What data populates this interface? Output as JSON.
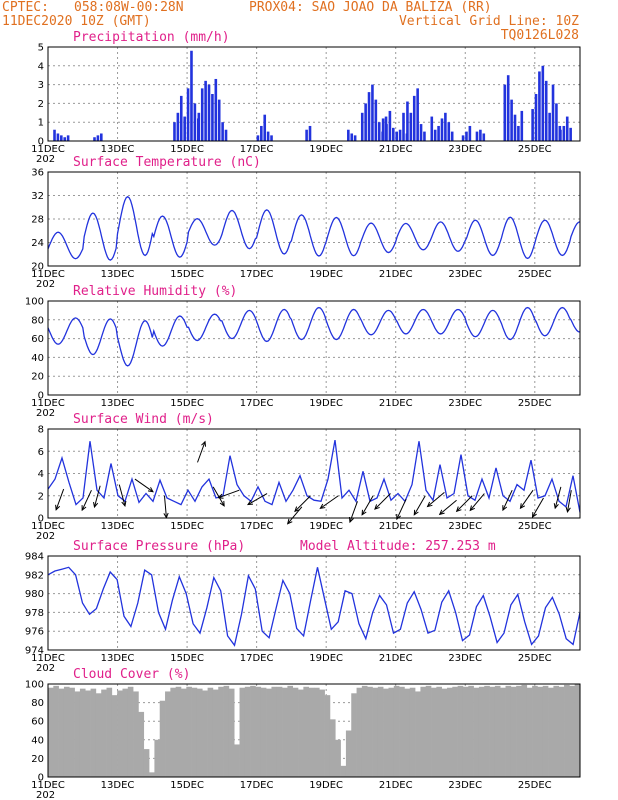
{
  "header": {
    "line1_left": "CPTEC:",
    "coords": "058:08W-00:28N",
    "station": "PROX04: SAO JOAO DA BALIZA (RR)",
    "datetime": "11DEC2020 10Z (GMT)",
    "grid_note": "Vertical Grid Line: 10Z",
    "model_code": "TQ0126L028"
  },
  "x_axis": {
    "tick_labels": [
      "11DEC",
      "13DEC",
      "15DEC",
      "17DEC",
      "19DEC",
      "21DEC",
      "23DEC",
      "25DEC"
    ],
    "cut_label": "202"
  },
  "colors": {
    "header": "#e07020",
    "title": "#e0208a",
    "series": "#2233dd",
    "cloud": "#a9a9a9",
    "wind_arrow": "#000000"
  },
  "chart_data": [
    {
      "type": "bar",
      "title": "Precipitation (mm/h)",
      "ylim": [
        0,
        5
      ],
      "yticks": [
        0,
        1,
        2,
        3,
        4,
        5
      ],
      "x_range_days": [
        0,
        15.3
      ],
      "bursts": [
        {
          "day": 0.15,
          "values": [
            0.6,
            0.4,
            0.3,
            0.2,
            0.3
          ]
        },
        {
          "day": 1.3,
          "values": [
            0.2,
            0.3,
            0.4
          ]
        },
        {
          "day": 3.6,
          "values": [
            1.0,
            1.5,
            2.4,
            1.3,
            2.8,
            4.8,
            2.0,
            1.2
          ]
        },
        {
          "day": 4.3,
          "values": [
            1.5,
            2.8,
            3.2,
            3.0,
            2.5,
            3.3,
            2.2,
            1.0,
            0.6
          ]
        },
        {
          "day": 6.0,
          "values": [
            0.3,
            0.8,
            1.4,
            0.5,
            0.3
          ]
        },
        {
          "day": 7.4,
          "values": [
            0.6,
            0.8
          ]
        },
        {
          "day": 8.6,
          "values": [
            0.6,
            0.4,
            0.3
          ]
        },
        {
          "day": 9.0,
          "values": [
            1.5,
            2.0,
            2.6,
            3.0,
            2.2,
            1.0,
            0.5,
            1.3
          ]
        },
        {
          "day": 9.6,
          "values": [
            1.2,
            0.9,
            1.6,
            0.7,
            0.5,
            0.6,
            1.5,
            0.4
          ]
        },
        {
          "day": 10.3,
          "values": [
            2.1,
            1.5,
            2.4,
            2.8,
            0.9,
            0.5
          ]
        },
        {
          "day": 11.0,
          "values": [
            1.3,
            0.6,
            0.8,
            1.2,
            1.5,
            1.0,
            0.5
          ]
        },
        {
          "day": 11.9,
          "values": [
            0.3,
            0.5,
            0.8
          ]
        },
        {
          "day": 12.3,
          "values": [
            0.5,
            0.6,
            0.4
          ]
        },
        {
          "day": 13.1,
          "values": [
            3.0,
            3.5,
            2.2,
            1.4,
            0.8,
            1.6
          ]
        },
        {
          "day": 13.9,
          "values": [
            1.7,
            2.5,
            3.7,
            4.0,
            3.2,
            1.5,
            3.0,
            2.0,
            0.8
          ]
        },
        {
          "day": 14.7,
          "values": [
            0.6,
            0.8,
            1.3,
            0.7
          ]
        }
      ]
    },
    {
      "type": "line",
      "title": "Surface Temperature (nC)",
      "ylim": [
        20,
        36
      ],
      "yticks": [
        20,
        24,
        28,
        32,
        36
      ],
      "mean": [
        23.5,
        25,
        26.8,
        25,
        25.8,
        26.2,
        25.8,
        25.2,
        25,
        24.8,
        25,
        25,
        24.8,
        24.8,
        24.8,
        25,
        25.2
      ],
      "amp": [
        4.5,
        8,
        10,
        7,
        4.5,
        6.5,
        7.5,
        7,
        6.5,
        5,
        4.5,
        5,
        6,
        7,
        6,
        5,
        4
      ],
      "peak_hour": 17
    },
    {
      "type": "line",
      "title": "Relative Humidity (%)",
      "ylim": [
        0,
        100
      ],
      "yticks": [
        0,
        20,
        40,
        60,
        80,
        100
      ],
      "mean": [
        68,
        62,
        55,
        68,
        72,
        75,
        74,
        76,
        75,
        77,
        78,
        78,
        76,
        76,
        78,
        80,
        82
      ],
      "amp": [
        28,
        38,
        48,
        32,
        28,
        30,
        34,
        34,
        32,
        26,
        26,
        26,
        28,
        34,
        30,
        26,
        22
      ],
      "trough_hour": 17
    },
    {
      "type": "line",
      "title": "Surface Wind (m/s)",
      "ylim": [
        0,
        8
      ],
      "yticks": [
        0,
        2,
        4,
        6,
        8
      ],
      "values": [
        2.6,
        3.5,
        5.4,
        3.2,
        1.2,
        1.8,
        6.9,
        2.5,
        1.8,
        4.9,
        2.0,
        1.5,
        3.5,
        1.4,
        2.2,
        1.5,
        3.4,
        1.8,
        1.5,
        1.2,
        2.5,
        1.5,
        2.8,
        3.5,
        1.8,
        2.0,
        5.6,
        3.0,
        2.0,
        1.5,
        2.8,
        1.5,
        1.2,
        3.2,
        1.5,
        2.5,
        3.8,
        2.0,
        1.6,
        1.5,
        3.5,
        7.0,
        1.8,
        2.5,
        1.5,
        4.2,
        1.5,
        1.8,
        3.5,
        1.6,
        2.2,
        1.5,
        3.0,
        6.9,
        2.5,
        1.6,
        4.8,
        1.8,
        2.2,
        5.7,
        2.0,
        1.6,
        3.5,
        1.8,
        4.5,
        2.0,
        1.5,
        3.0,
        2.5,
        5.2,
        1.8,
        2.0,
        3.5,
        1.5,
        1.0,
        3.8,
        0.5
      ],
      "arrows": [
        {
          "day": 0.45,
          "speed": 3.6,
          "to_deg": 200
        },
        {
          "day": 1.25,
          "speed": 3.5,
          "to_deg": 205
        },
        {
          "day": 1.5,
          "speed": 3.9,
          "to_deg": 195
        },
        {
          "day": 2.05,
          "speed": 4.0,
          "to_deg": 165
        },
        {
          "day": 2.5,
          "speed": 4.5,
          "to_deg": 125
        },
        {
          "day": 3.35,
          "speed": 3.0,
          "to_deg": 175
        },
        {
          "day": 4.3,
          "speed": 6.0,
          "to_deg": 20
        },
        {
          "day": 4.75,
          "speed": 3.8,
          "to_deg": 150
        },
        {
          "day": 5.5,
          "speed": 3.5,
          "to_deg": 250
        },
        {
          "day": 6.3,
          "speed": 3.2,
          "to_deg": 240
        },
        {
          "day": 7.3,
          "speed": 2.0,
          "to_deg": 220
        },
        {
          "day": 7.55,
          "speed": 3.0,
          "to_deg": 225
        },
        {
          "day": 8.35,
          "speed": 3.0,
          "to_deg": 235
        },
        {
          "day": 8.9,
          "speed": 2.5,
          "to_deg": 200
        },
        {
          "day": 9.35,
          "speed": 3.0,
          "to_deg": 210
        },
        {
          "day": 9.85,
          "speed": 3.2,
          "to_deg": 225
        },
        {
          "day": 10.3,
          "speed": 2.7,
          "to_deg": 205
        },
        {
          "day": 10.85,
          "speed": 3.0,
          "to_deg": 210
        },
        {
          "day": 11.4,
          "speed": 3.3,
          "to_deg": 230
        },
        {
          "day": 11.75,
          "speed": 2.6,
          "to_deg": 230
        },
        {
          "day": 12.2,
          "speed": 3.0,
          "to_deg": 225
        },
        {
          "day": 12.55,
          "speed": 3.2,
          "to_deg": 220
        },
        {
          "day": 13.35,
          "speed": 3.5,
          "to_deg": 205
        },
        {
          "day": 13.95,
          "speed": 3.5,
          "to_deg": 215
        },
        {
          "day": 14.25,
          "speed": 2.8,
          "to_deg": 210
        },
        {
          "day": 14.75,
          "speed": 3.8,
          "to_deg": 195
        },
        {
          "day": 15.05,
          "speed": 3.5,
          "to_deg": 190
        }
      ]
    },
    {
      "type": "line",
      "title": "Surface Pressure (hPa)",
      "annotation": "Model Altitude: 257.253 m",
      "ylim": [
        974,
        984
      ],
      "yticks": [
        974,
        976,
        978,
        980,
        982,
        984
      ],
      "values": [
        982.0,
        982.4,
        982.6,
        982.8,
        982.0,
        979.0,
        977.8,
        978.4,
        980.5,
        982.3,
        981.5,
        977.6,
        976.5,
        979.0,
        982.5,
        982.0,
        978.0,
        976.2,
        979.3,
        981.8,
        980.0,
        976.8,
        975.8,
        978.5,
        981.7,
        980.3,
        975.5,
        974.5,
        977.8,
        981.9,
        980.5,
        976.0,
        975.3,
        978.4,
        981.4,
        980.0,
        976.3,
        975.5,
        979.2,
        982.8,
        979.5,
        976.2,
        977.0,
        980.3,
        980.0,
        976.8,
        975.2,
        978.0,
        979.8,
        978.8,
        975.8,
        976.2,
        979.0,
        980.2,
        978.3,
        975.8,
        976.1,
        979.1,
        980.3,
        978.0,
        975.0,
        975.6,
        978.6,
        979.8,
        977.5,
        974.8,
        975.8,
        978.8,
        979.9,
        977.0,
        974.6,
        975.5,
        978.5,
        979.6,
        977.8,
        975.2,
        974.6,
        978.0
      ]
    },
    {
      "type": "area",
      "title": "Cloud Cover (%)",
      "ylim": [
        0,
        100
      ],
      "yticks": [
        0,
        20,
        40,
        60,
        80,
        100
      ],
      "values": [
        96,
        98,
        95,
        97,
        96,
        92,
        95,
        93,
        95,
        90,
        94,
        96,
        88,
        93,
        95,
        97,
        92,
        70,
        30,
        5,
        40,
        82,
        92,
        96,
        97,
        95,
        97,
        96,
        95,
        93,
        96,
        94,
        97,
        98,
        95,
        35,
        96,
        97,
        98,
        97,
        96,
        95,
        97,
        97,
        96,
        98,
        96,
        94,
        97,
        96,
        96,
        94,
        88,
        62,
        40,
        12,
        50,
        90,
        96,
        98,
        97,
        96,
        97,
        95,
        96,
        98,
        97,
        95,
        96,
        92,
        97,
        98,
        96,
        97,
        95,
        96,
        97,
        98,
        97,
        98,
        96,
        97,
        98,
        97,
        98,
        96,
        98,
        97,
        98,
        99,
        96,
        98,
        97,
        98,
        96,
        98,
        97,
        99,
        98,
        100
      ]
    }
  ]
}
